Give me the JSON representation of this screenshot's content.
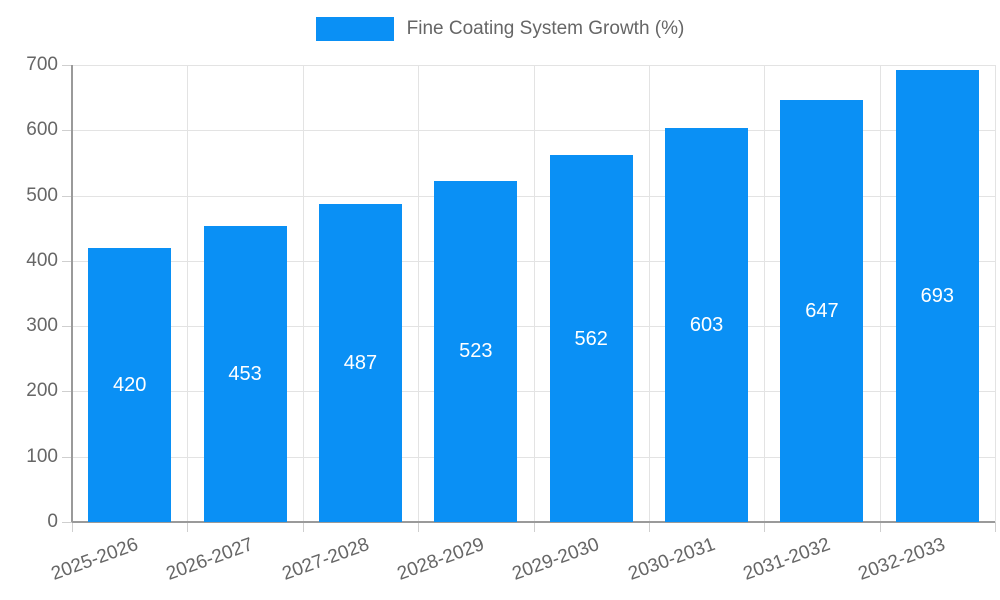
{
  "legend": {
    "label": "Fine Coating System Growth (%)"
  },
  "chart_data": {
    "type": "bar",
    "title": "Fine Coating System Growth (%)",
    "categories": [
      "2025-2026",
      "2026-2027",
      "2027-2028",
      "2028-2029",
      "2029-2030",
      "2030-2031",
      "2031-2032",
      "2032-2033"
    ],
    "values": [
      420,
      453,
      487,
      523,
      562,
      603,
      647,
      693
    ],
    "yticks": [
      0,
      100,
      200,
      300,
      400,
      500,
      600,
      700
    ],
    "ylim": [
      0,
      700
    ],
    "xlabel": "",
    "ylabel": "",
    "grid": true,
    "legend_position": "top",
    "value_labels_position": "center-of-bar",
    "colors": {
      "bar": "#0a90f5",
      "value_label": "#ffffff",
      "axis_text": "#666666",
      "grid_line": "#e3e3e3",
      "tick_mark": "#cfcfcf",
      "axis_border": "#9a9a9a"
    }
  }
}
